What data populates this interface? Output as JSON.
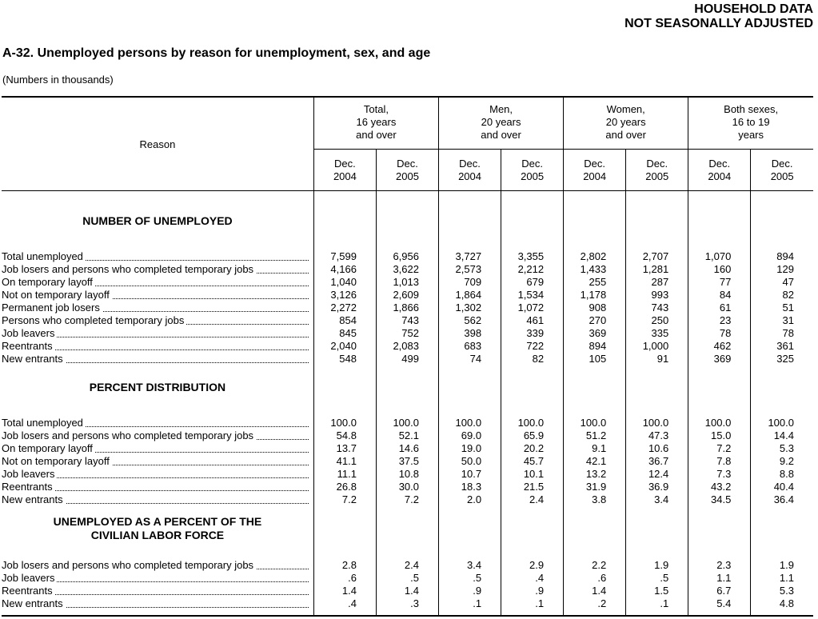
{
  "header": {
    "line1": "HOUSEHOLD DATA",
    "line2": "NOT SEASONALLY ADJUSTED",
    "title": "A-32.  Unemployed persons by reason for unemployment, sex, and age",
    "subtitle": "(Numbers in thousands)"
  },
  "columns": {
    "reason_label": "Reason",
    "groups": [
      {
        "l1": "Total,",
        "l2": "16 years",
        "l3": "and over"
      },
      {
        "l1": "Men,",
        "l2": "20 years",
        "l3": "and over"
      },
      {
        "l1": "Women,",
        "l2": "20 years",
        "l3": "and over"
      },
      {
        "l1": "Both sexes,",
        "l2": "16 to 19",
        "l3": "years"
      }
    ],
    "years": [
      {
        "m": "Dec.",
        "y": "2004"
      },
      {
        "m": "Dec.",
        "y": "2005"
      },
      {
        "m": "Dec.",
        "y": "2004"
      },
      {
        "m": "Dec.",
        "y": "2005"
      },
      {
        "m": "Dec.",
        "y": "2004"
      },
      {
        "m": "Dec.",
        "y": "2005"
      },
      {
        "m": "Dec.",
        "y": "2004"
      },
      {
        "m": "Dec.",
        "y": "2005"
      }
    ]
  },
  "sections": [
    {
      "name1": "NUMBER OF UNEMPLOYED",
      "name2": "",
      "rows": [
        {
          "label": "Total unemployed",
          "indent": 1,
          "values": [
            "7,599",
            "6,956",
            "3,727",
            "3,355",
            "2,802",
            "2,707",
            "1,070",
            "894"
          ]
        },
        {
          "label": "Job losers and persons who completed temporary jobs",
          "indent": 0,
          "values": [
            "4,166",
            "3,622",
            "2,573",
            "2,212",
            "1,433",
            "1,281",
            "160",
            "129"
          ]
        },
        {
          "label": "On temporary layoff",
          "indent": 2,
          "values": [
            "1,040",
            "1,013",
            "709",
            "679",
            "255",
            "287",
            "77",
            "47"
          ]
        },
        {
          "label": "Not on temporary layoff",
          "indent": 2,
          "values": [
            "3,126",
            "2,609",
            "1,864",
            "1,534",
            "1,178",
            "993",
            "84",
            "82"
          ]
        },
        {
          "label": "Permanent job losers",
          "indent": 3,
          "values": [
            "2,272",
            "1,866",
            "1,302",
            "1,072",
            "908",
            "743",
            "61",
            "51"
          ]
        },
        {
          "label": "Persons who completed temporary jobs",
          "indent": 3,
          "values": [
            "854",
            "743",
            "562",
            "461",
            "270",
            "250",
            "23",
            "31"
          ]
        },
        {
          "label": "Job leavers",
          "indent": 0,
          "values": [
            "845",
            "752",
            "398",
            "339",
            "369",
            "335",
            "78",
            "78"
          ]
        },
        {
          "label": "Reentrants",
          "indent": 0,
          "values": [
            "2,040",
            "2,083",
            "683",
            "722",
            "894",
            "1,000",
            "462",
            "361"
          ]
        },
        {
          "label": "New entrants",
          "indent": 0,
          "values": [
            "548",
            "499",
            "74",
            "82",
            "105",
            "91",
            "369",
            "325"
          ]
        }
      ]
    },
    {
      "name1": "PERCENT DISTRIBUTION",
      "name2": "",
      "rows": [
        {
          "label": "Total unemployed",
          "indent": 1,
          "values": [
            "100.0",
            "100.0",
            "100.0",
            "100.0",
            "100.0",
            "100.0",
            "100.0",
            "100.0"
          ]
        },
        {
          "label": "Job losers and persons who completed temporary jobs",
          "indent": 0,
          "values": [
            "54.8",
            "52.1",
            "69.0",
            "65.9",
            "51.2",
            "47.3",
            "15.0",
            "14.4"
          ]
        },
        {
          "label": "On temporary layoff",
          "indent": 2,
          "values": [
            "13.7",
            "14.6",
            "19.0",
            "20.2",
            "9.1",
            "10.6",
            "7.2",
            "5.3"
          ]
        },
        {
          "label": "Not on temporary layoff",
          "indent": 2,
          "values": [
            "41.1",
            "37.5",
            "50.0",
            "45.7",
            "42.1",
            "36.7",
            "7.8",
            "9.2"
          ]
        },
        {
          "label": "Job leavers",
          "indent": 0,
          "values": [
            "11.1",
            "10.8",
            "10.7",
            "10.1",
            "13.2",
            "12.4",
            "7.3",
            "8.8"
          ]
        },
        {
          "label": "Reentrants",
          "indent": 0,
          "values": [
            "26.8",
            "30.0",
            "18.3",
            "21.5",
            "31.9",
            "36.9",
            "43.2",
            "40.4"
          ]
        },
        {
          "label": "New entrants",
          "indent": 0,
          "values": [
            "7.2",
            "7.2",
            "2.0",
            "2.4",
            "3.8",
            "3.4",
            "34.5",
            "36.4"
          ]
        }
      ]
    },
    {
      "name1": "UNEMPLOYED AS A PERCENT OF THE",
      "name2": "CIVILIAN LABOR FORCE",
      "rows": [
        {
          "label": "Job losers and persons who completed temporary jobs",
          "indent": 0,
          "values": [
            "2.8",
            "2.4",
            "3.4",
            "2.9",
            "2.2",
            "1.9",
            "2.3",
            "1.9"
          ]
        },
        {
          "label": "Job leavers",
          "indent": 0,
          "values": [
            ".6",
            ".5",
            ".5",
            ".4",
            ".6",
            ".5",
            "1.1",
            "1.1"
          ]
        },
        {
          "label": "Reentrants",
          "indent": 0,
          "values": [
            "1.4",
            "1.4",
            ".9",
            ".9",
            "1.4",
            "1.5",
            "6.7",
            "5.3"
          ]
        },
        {
          "label": "New entrants",
          "indent": 0,
          "values": [
            ".4",
            ".3",
            ".1",
            ".1",
            ".2",
            ".1",
            "5.4",
            "4.8"
          ]
        }
      ]
    }
  ]
}
